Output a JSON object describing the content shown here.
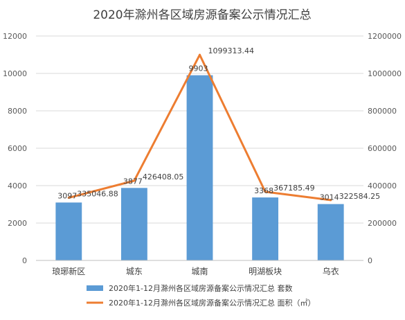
{
  "chart_data": {
    "type": "bar",
    "title": "2020年滁州各区域房源备案公示情况汇总",
    "categories": [
      "琅琊新区",
      "城东",
      "城南",
      "明湖板块",
      "乌衣"
    ],
    "y_left": {
      "min": 0,
      "max": 12000,
      "ticks": [
        "0",
        "2000",
        "4000",
        "6000",
        "8000",
        "10000",
        "12000"
      ]
    },
    "y_right": {
      "min": 0,
      "max": 1200000,
      "ticks": [
        "0",
        "200000",
        "400000",
        "600000",
        "800000",
        "1000000",
        "1200000"
      ]
    },
    "grid": true,
    "legend_position": "bottom",
    "series": [
      {
        "name": "2020年1-12月滁州各区域房源备案公示情况汇总 套数",
        "type": "bar",
        "axis": "left",
        "color": "#5B9BD5",
        "values": [
          3097,
          3877,
          9903,
          3368,
          3014
        ],
        "labels": [
          "3097",
          "3877",
          "9903",
          "3368",
          "3014"
        ]
      },
      {
        "name": "2020年1-12月滁州各区域房源备案公示情况汇总 面积（㎡）",
        "type": "line",
        "axis": "right",
        "color": "#ED7D31",
        "values": [
          335046.88,
          426408.05,
          1099313.44,
          367185.49,
          322584.25
        ],
        "labels": [
          "335046.88",
          "426408.05",
          "1099313.44",
          "367185.49",
          "322584.25"
        ]
      }
    ]
  }
}
